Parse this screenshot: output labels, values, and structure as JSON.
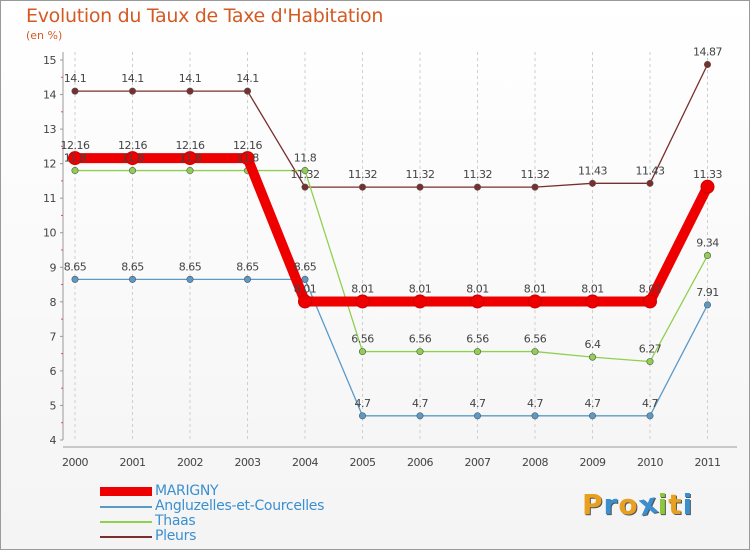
{
  "title": "Evolution du Taux de Taxe d'Habitation",
  "subtitle": "(en %)",
  "logo": {
    "letters": [
      "P",
      "r",
      "o",
      "x",
      "i",
      "t",
      "i"
    ],
    "colors": [
      "#e8a020",
      "#3a8fd0",
      "#e8a020",
      "#3a8fd0",
      "#8cc83c",
      "#e8a020",
      "#3a8fd0"
    ]
  },
  "chart_data": {
    "type": "line",
    "x": [
      "2000",
      "2001",
      "2002",
      "2003",
      "2004",
      "2005",
      "2006",
      "2007",
      "2008",
      "2009",
      "2010",
      "2011"
    ],
    "ylim": [
      4,
      15
    ],
    "yticks": [
      "4",
      "5",
      "6",
      "7",
      "8",
      "9",
      "10",
      "11",
      "12",
      "13",
      "14",
      "15"
    ],
    "grid": "vertical dashed",
    "legend_position": "bottom-left",
    "series": [
      {
        "name": "MARIGNY",
        "color": "#ee0000",
        "values": [
          12.16,
          12.16,
          12.16,
          12.16,
          8.01,
          8.01,
          8.01,
          8.01,
          8.01,
          8.01,
          8.01,
          11.33
        ],
        "labels": [
          "12.16",
          "12.16",
          "12.16",
          "12.16",
          "8.01",
          "8.01",
          "8.01",
          "8.01",
          "8.01",
          "8.01",
          "8.01",
          "11.33"
        ]
      },
      {
        "name": "Angluzelles-et-Courcelles",
        "color": "#5a9ac8",
        "values": [
          8.65,
          8.65,
          8.65,
          8.65,
          8.65,
          4.7,
          4.7,
          4.7,
          4.7,
          4.7,
          4.7,
          7.91
        ],
        "labels": [
          "8.65",
          "8.65",
          "8.65",
          "8.65",
          "8.65",
          "4.7",
          "4.7",
          "4.7",
          "4.7",
          "4.7",
          "4.7",
          "7.91"
        ]
      },
      {
        "name": "Thaas",
        "color": "#90d050",
        "values": [
          11.8,
          11.8,
          11.8,
          11.8,
          11.8,
          6.56,
          6.56,
          6.56,
          6.56,
          6.4,
          6.27,
          9.34
        ],
        "labels": [
          "11.8",
          "11.8",
          "11.8",
          "11.8",
          "11.8",
          "6.56",
          "6.56",
          "6.56",
          "6.56",
          "6.4",
          "6.27",
          "9.34"
        ]
      },
      {
        "name": "Pleurs",
        "color": "#7a2e2e",
        "values": [
          14.1,
          14.1,
          14.1,
          14.1,
          11.32,
          11.32,
          11.32,
          11.32,
          11.32,
          11.43,
          11.43,
          14.87
        ],
        "labels": [
          "14.1",
          "14.1",
          "14.1",
          "14.1",
          "11.32",
          "11.32",
          "11.32",
          "11.32",
          "11.32",
          "11.43",
          "11.43",
          "14.87"
        ]
      }
    ]
  }
}
